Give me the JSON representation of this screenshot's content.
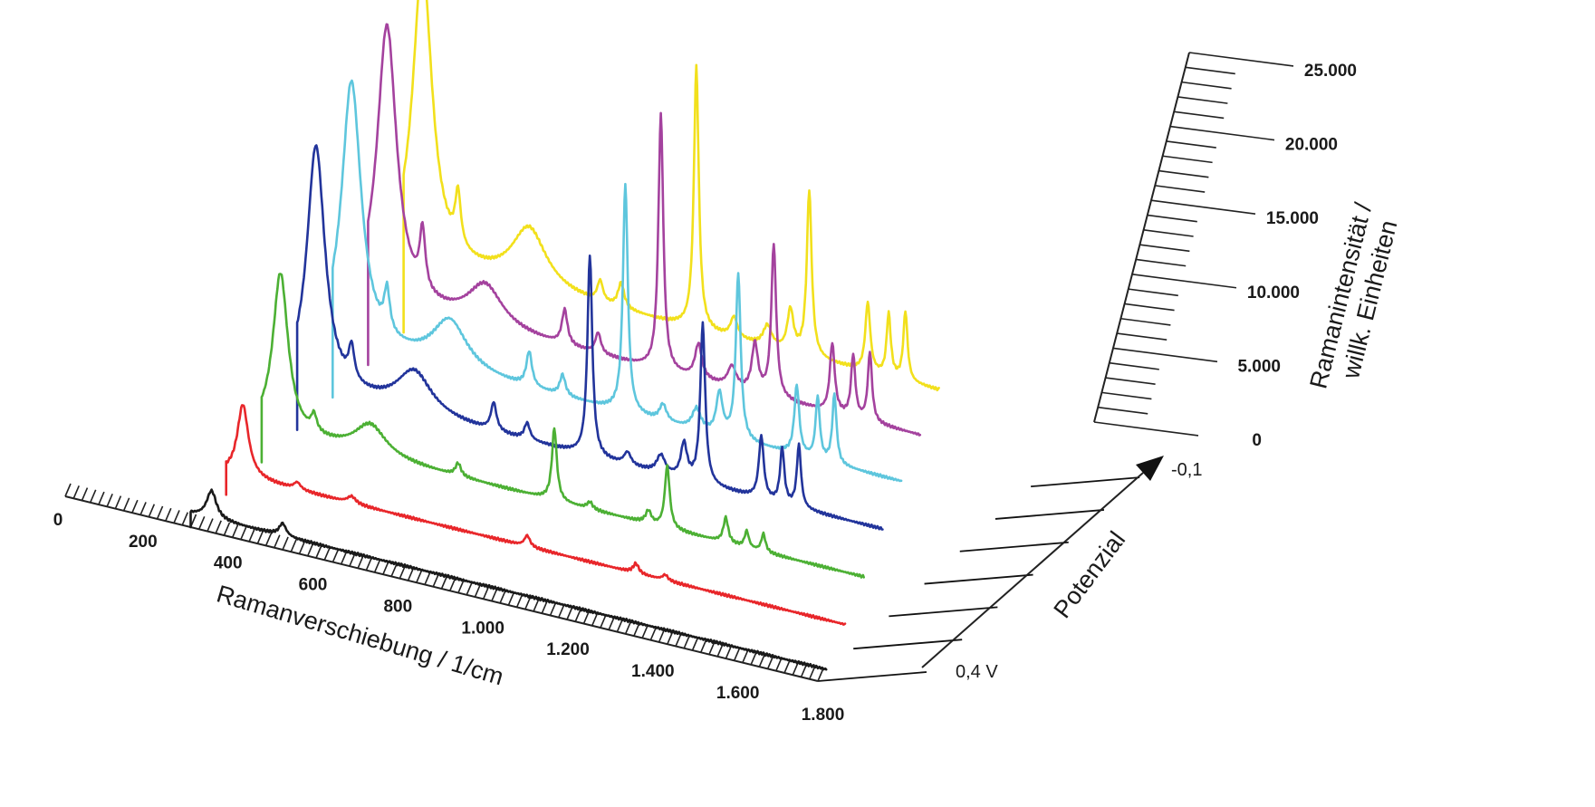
{
  "chart_data": {
    "type": "line",
    "subtype": "3d-waterfall",
    "x_axis": {
      "label": "Ramanverschiebung / 1/cm",
      "ticks": [
        "0",
        "200",
        "400",
        "600",
        "800",
        "1.000",
        "1.200",
        "1.400",
        "1.600",
        "1.800"
      ],
      "range": [
        0,
        1800
      ]
    },
    "z_axis": {
      "label": "Ramanintensität / willk. Einheiten",
      "label_lines": [
        "Ramanintensität /",
        "willk. Einheiten"
      ],
      "ticks": [
        "0",
        "5.000",
        "10.000",
        "15.000",
        "20.000",
        "25.000"
      ],
      "range": [
        0,
        25000
      ]
    },
    "depth_axis": {
      "label": "Potenzial",
      "start_label": "0,4 V",
      "end_label": "-0,1"
    },
    "series": [
      {
        "color": "#1a1a1a",
        "baseline": 1000,
        "peaks": [
          [
            350,
            2000,
            14
          ],
          [
            520,
            900,
            10
          ]
        ]
      },
      {
        "color": "#e8262a",
        "baseline": 1600,
        "peaks": [
          [
            340,
            5200,
            16
          ],
          [
            470,
            500,
            10
          ],
          [
            600,
            500,
            12
          ],
          [
            1020,
            800,
            8
          ],
          [
            1280,
            700,
            8
          ],
          [
            1350,
            400,
            8
          ]
        ]
      },
      {
        "color": "#4cb034",
        "baseline": 2400,
        "peaks": [
          [
            345,
            11500,
            22
          ],
          [
            425,
            1200,
            8
          ],
          [
            560,
            2200,
            45
          ],
          [
            770,
            900,
            8
          ],
          [
            1000,
            5200,
            7
          ],
          [
            1085,
            500,
            8
          ],
          [
            1225,
            900,
            8
          ],
          [
            1270,
            4500,
            7
          ],
          [
            1410,
            1800,
            7
          ],
          [
            1460,
            1200,
            6
          ],
          [
            1500,
            1300,
            6
          ]
        ]
      },
      {
        "color": "#22349b",
        "baseline": 3200,
        "peaks": [
          [
            345,
            17500,
            26
          ],
          [
            430,
            2400,
            8
          ],
          [
            580,
            3000,
            50
          ],
          [
            770,
            2000,
            8
          ],
          [
            850,
            1200,
            8
          ],
          [
            1000,
            14500,
            7
          ],
          [
            1090,
            900,
            10
          ],
          [
            1170,
            1300,
            12
          ],
          [
            1225,
            2500,
            9
          ],
          [
            1270,
            11500,
            7
          ],
          [
            1410,
            4500,
            7
          ],
          [
            1460,
            4000,
            6
          ],
          [
            1500,
            4500,
            6
          ]
        ]
      },
      {
        "color": "#5ec6dd",
        "baseline": 4000,
        "peaks": [
          [
            345,
            19000,
            28
          ],
          [
            430,
            3000,
            8
          ],
          [
            580,
            3500,
            50
          ],
          [
            770,
            2500,
            8
          ],
          [
            850,
            1500,
            8
          ],
          [
            1000,
            16500,
            7
          ],
          [
            1090,
            1200,
            10
          ],
          [
            1170,
            1500,
            12
          ],
          [
            1225,
            3000,
            9
          ],
          [
            1270,
            12000,
            7
          ],
          [
            1410,
            5000,
            7
          ],
          [
            1460,
            4500,
            6
          ],
          [
            1500,
            5000,
            6
          ]
        ]
      },
      {
        "color": "#a4429e",
        "baseline": 4700,
        "peaks": [
          [
            345,
            20000,
            28
          ],
          [
            430,
            4300,
            8
          ],
          [
            580,
            3000,
            50
          ],
          [
            770,
            2500,
            8
          ],
          [
            850,
            1500,
            8
          ],
          [
            1000,
            18500,
            7
          ],
          [
            1090,
            2500,
            10
          ],
          [
            1170,
            1500,
            12
          ],
          [
            1225,
            3500,
            9
          ],
          [
            1270,
            11000,
            7
          ],
          [
            1410,
            5000,
            7
          ],
          [
            1460,
            4500,
            6
          ],
          [
            1500,
            5000,
            6
          ]
        ]
      },
      {
        "color": "#f2e01c",
        "baseline": 5300,
        "peaks": [
          [
            345,
            21500,
            28
          ],
          [
            430,
            3800,
            8
          ],
          [
            600,
            4300,
            50
          ],
          [
            770,
            1500,
            8
          ],
          [
            820,
            1800,
            9
          ],
          [
            1000,
            19000,
            7
          ],
          [
            1090,
            1500,
            10
          ],
          [
            1170,
            1500,
            12
          ],
          [
            1225,
            3000,
            9
          ],
          [
            1270,
            12000,
            7
          ],
          [
            1410,
            5000,
            7
          ],
          [
            1460,
            4500,
            6
          ],
          [
            1500,
            5000,
            6
          ]
        ]
      }
    ]
  }
}
